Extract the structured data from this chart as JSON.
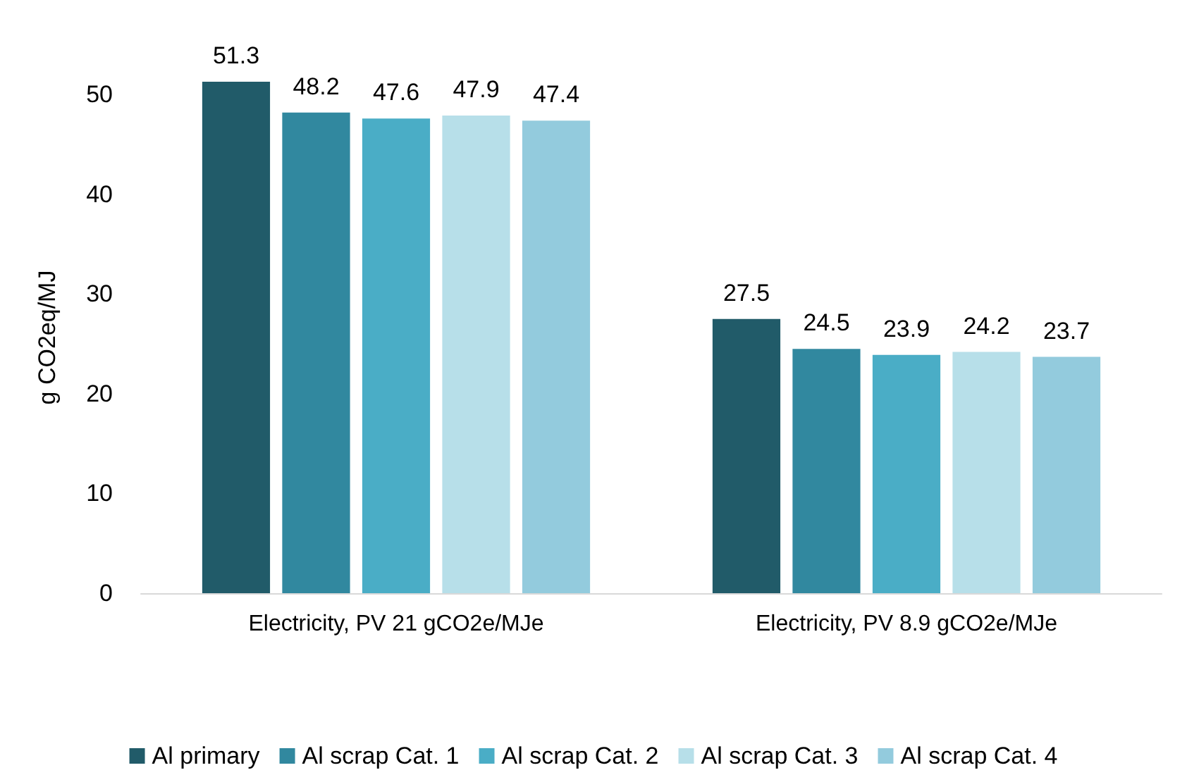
{
  "chart_data": {
    "type": "bar",
    "ylabel": "g CO2eq/MJ",
    "categories": [
      "Electricity, PV 21 gCO2e/MJe",
      "Electricity, PV 8.9 gCO2e/MJe"
    ],
    "series": [
      {
        "name": "Al primary",
        "color": "#215b69",
        "values": [
          51.3,
          27.5
        ]
      },
      {
        "name": "Al scrap Cat. 1",
        "color": "#31889f",
        "values": [
          48.2,
          24.5
        ]
      },
      {
        "name": "Al scrap Cat. 2",
        "color": "#4aadc6",
        "values": [
          47.6,
          23.9
        ]
      },
      {
        "name": "Al scrap Cat. 3",
        "color": "#b7dfe9",
        "values": [
          47.9,
          24.2
        ]
      },
      {
        "name": "Al scrap Cat. 4",
        "color": "#93cbdd",
        "values": [
          47.4,
          23.7
        ]
      }
    ],
    "ylim": [
      0,
      51.3
    ],
    "yticks": [
      0,
      10,
      20,
      30,
      40,
      50
    ],
    "grid": false,
    "legend": "bottom",
    "data_labels": true
  }
}
